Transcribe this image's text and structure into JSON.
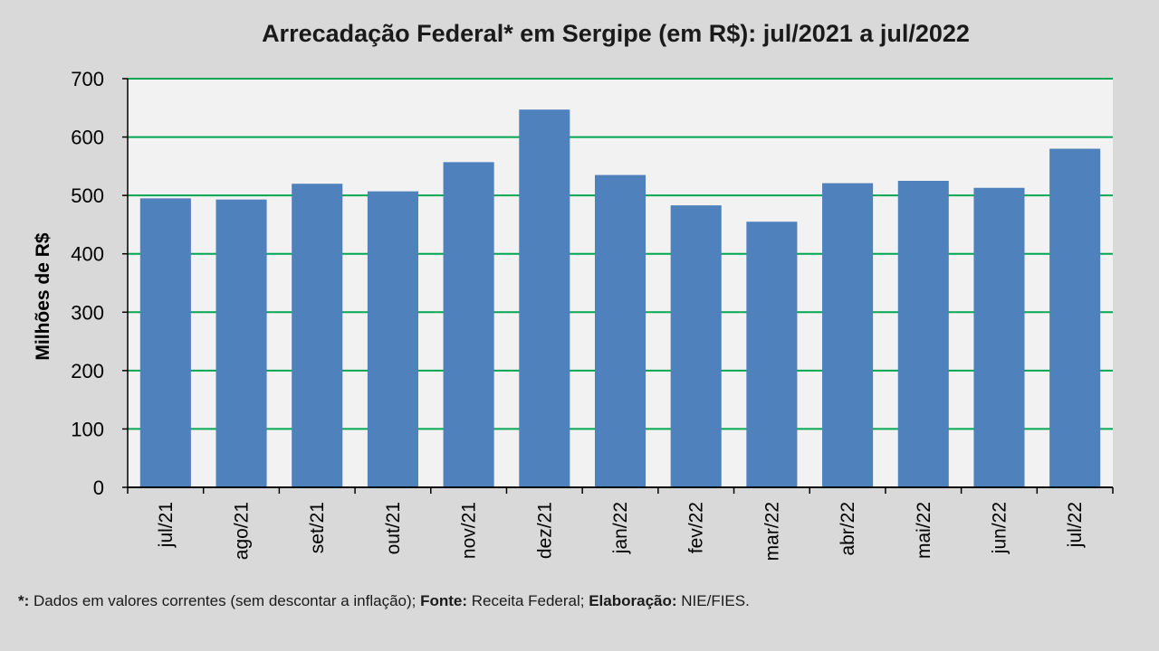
{
  "chart_data": {
    "type": "bar",
    "title": "Arrecadação Federal* em Sergipe (em R$): jul/2021 a jul/2022",
    "xlabel": "",
    "ylabel": "Milhões de R$",
    "ylim": [
      0,
      700
    ],
    "yticks": [
      "0",
      "100",
      "200",
      "300",
      "400",
      "500",
      "600",
      "700"
    ],
    "grid": true,
    "categories": [
      "jul/21",
      "ago/21",
      "set/21",
      "out/21",
      "nov/21",
      "dez/21",
      "jan/22",
      "fev/22",
      "mar/22",
      "abr/22",
      "mai/22",
      "jun/22",
      "jul/22"
    ],
    "values": [
      495,
      493,
      520,
      507,
      557,
      647,
      535,
      483,
      455,
      521,
      525,
      513,
      580
    ],
    "series_color": "#4f81bd",
    "grid_color": "#00a651"
  },
  "footnote": {
    "marker": "*:",
    "text1": " Dados em valores correntes (sem descontar a inflação); ",
    "source_label": "Fonte:",
    "source_value": " Receita  Federal; ",
    "elab_label": "Elaboração:",
    "elab_value": " NIE/FIES."
  }
}
